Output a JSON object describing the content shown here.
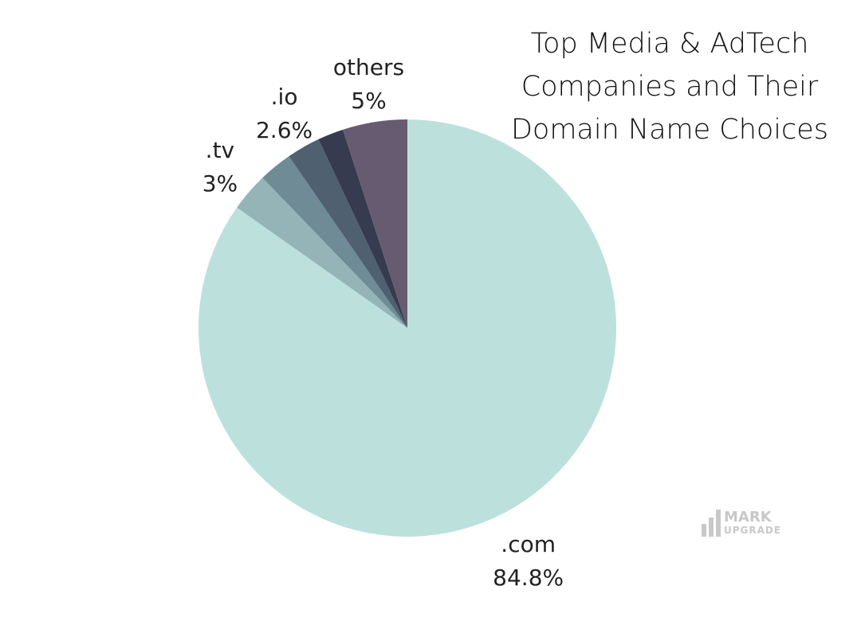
{
  "chart_data": {
    "type": "pie",
    "title": "Top Media & AdTech Companies and Their Domain Name Choices",
    "categories": [
      ".com",
      ".tv",
      null,
      ".io",
      null,
      "others"
    ],
    "values": [
      84.8,
      3,
      2.6,
      2.6,
      2.0,
      5
    ],
    "value_labels": [
      "84.8%",
      "3%",
      null,
      "2.6%",
      null,
      "5%"
    ],
    "colors": [
      "#bce1dd",
      "#94b4b8",
      "#6e8b96",
      "#4f6070",
      "#363b50",
      "#665b70"
    ],
    "watermark": [
      "MARK",
      "UPGRADE"
    ]
  }
}
